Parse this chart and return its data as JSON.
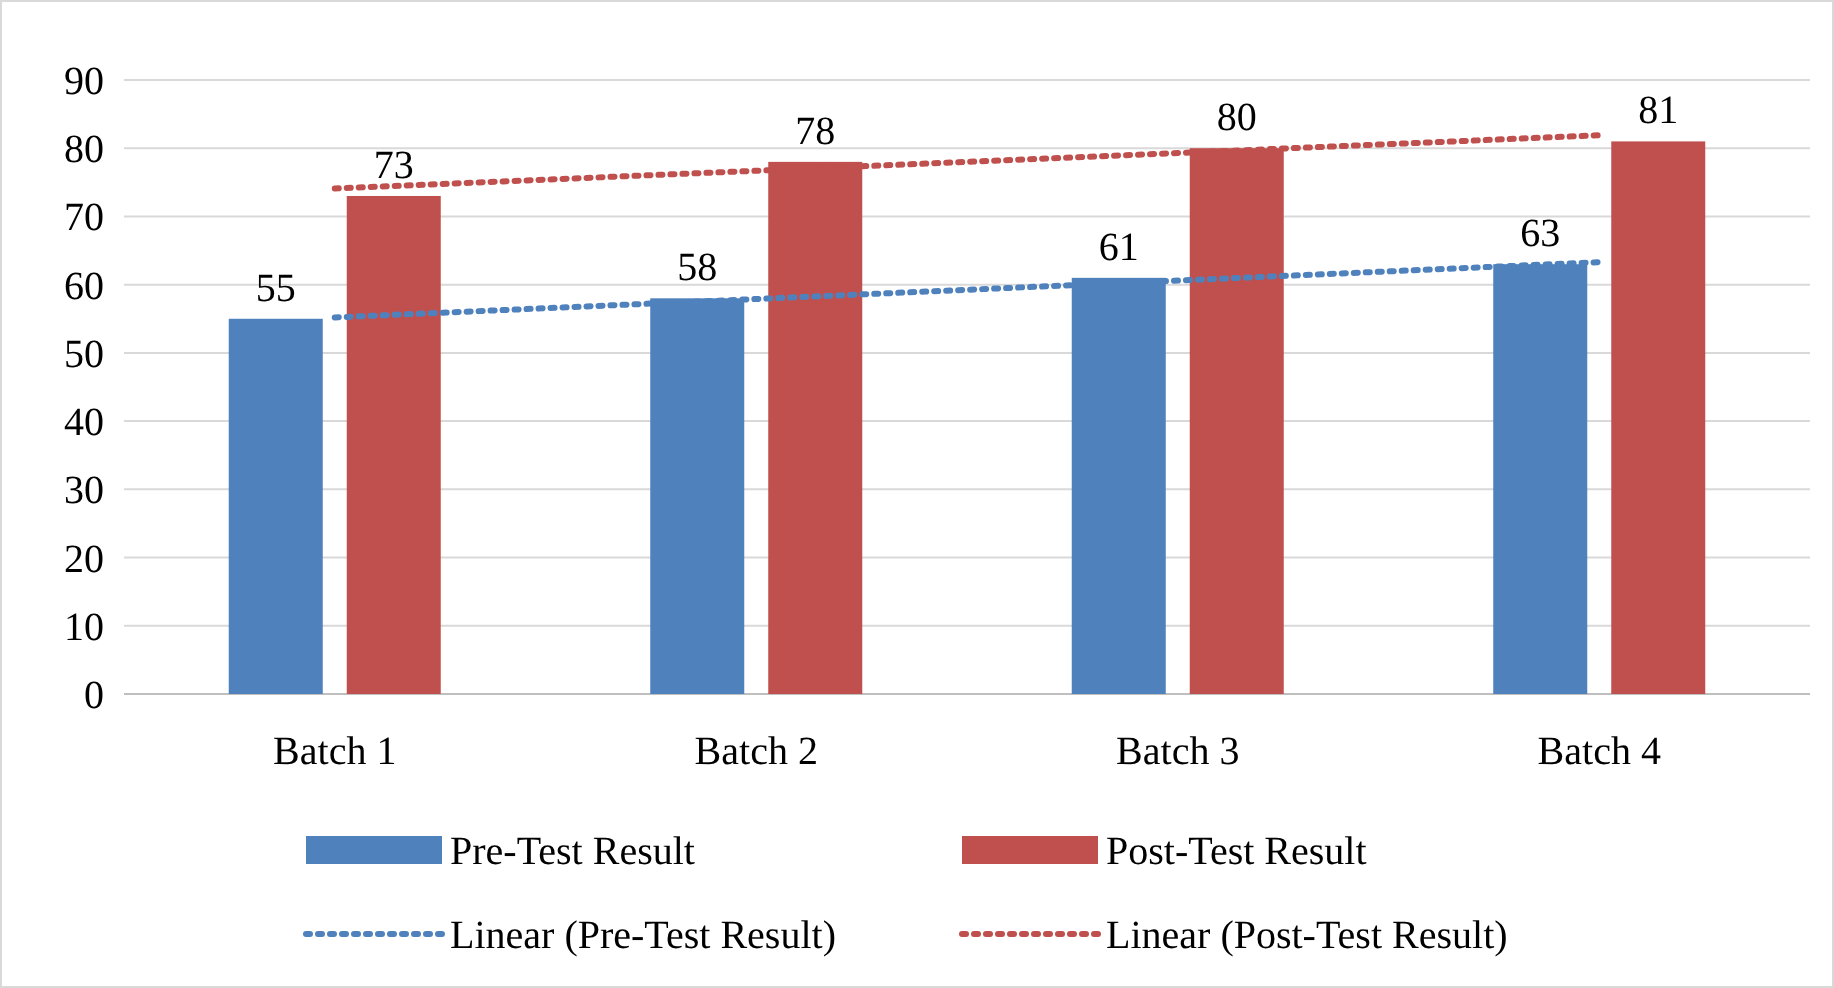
{
  "chart_data": {
    "type": "bar",
    "categories": [
      "Batch 1",
      "Batch 2",
      "Batch 3",
      "Batch 4"
    ],
    "series": [
      {
        "name": "Pre-Test Result",
        "color": "#4f81bd",
        "values": [
          55,
          58,
          61,
          63
        ],
        "value_labels": [
          "55",
          "58",
          "61",
          "63"
        ]
      },
      {
        "name": "Post-Test Result",
        "color": "#c0504d",
        "values": [
          73,
          78,
          80,
          81
        ],
        "value_labels": [
          "73",
          "78",
          "80",
          "81"
        ]
      },
      {
        "name": "Linear (Pre-Test Result)",
        "type": "line",
        "color": "#4f81bd",
        "line_style": "dotted",
        "values": [
          55.2,
          57.9,
          60.6,
          63.3
        ]
      },
      {
        "name": "Linear (Post-Test Result)",
        "type": "line",
        "color": "#c0504d",
        "line_style": "dotted",
        "values": [
          74.1,
          76.7,
          79.3,
          81.9
        ]
      }
    ],
    "ylim": [
      0,
      90
    ],
    "yticks": [
      0,
      10,
      20,
      30,
      40,
      50,
      60,
      70,
      80,
      90
    ],
    "grid": "y",
    "legend": "bottom"
  }
}
